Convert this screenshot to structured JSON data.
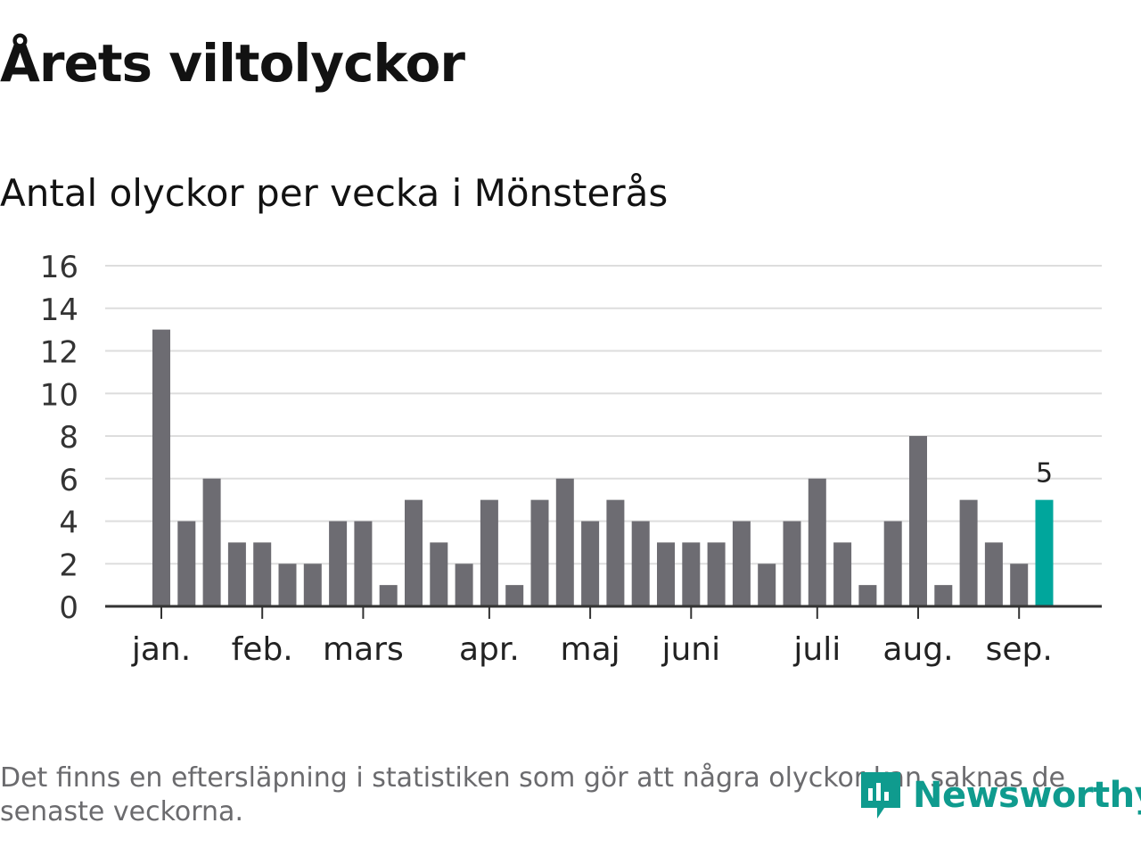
{
  "header": {
    "title": "Årets viltolyckor",
    "subtitle": "Antal olyckor per vecka i Mönsterås"
  },
  "footer": {
    "note": "Det finns en eftersläpning i statistiken som gör att några olyckor kan saknas de senaste veckorna.",
    "logo_text": "Newsworthy",
    "logo_icon": "newsworthy-logo-icon"
  },
  "colors": {
    "bar": "#6d6c72",
    "highlight": "#00a69c",
    "grid": "#dddddd",
    "axis": "#333333",
    "logo": "#0f9b8e"
  },
  "chart_data": {
    "type": "bar",
    "title": "Antal olyckor per vecka i Mönsterås",
    "xlabel": "",
    "ylabel": "",
    "ylim": [
      0,
      16
    ],
    "yticks": [
      0,
      2,
      4,
      6,
      8,
      10,
      12,
      14,
      16
    ],
    "grid": true,
    "values": [
      13,
      4,
      6,
      3,
      3,
      2,
      2,
      4,
      4,
      1,
      5,
      3,
      2,
      5,
      1,
      5,
      6,
      4,
      5,
      4,
      3,
      3,
      3,
      4,
      2,
      4,
      6,
      3,
      1,
      4,
      8,
      1,
      5,
      3,
      2,
      5
    ],
    "highlight_index": 35,
    "highlight_label": "5",
    "month_labels": [
      {
        "label": "jan.",
        "week": 1
      },
      {
        "label": "feb.",
        "week": 5
      },
      {
        "label": "mars",
        "week": 9
      },
      {
        "label": "apr.",
        "week": 14
      },
      {
        "label": "maj",
        "week": 18
      },
      {
        "label": "juni",
        "week": 22
      },
      {
        "label": "juli",
        "week": 27
      },
      {
        "label": "aug.",
        "week": 31
      },
      {
        "label": "sep.",
        "week": 35
      }
    ]
  }
}
